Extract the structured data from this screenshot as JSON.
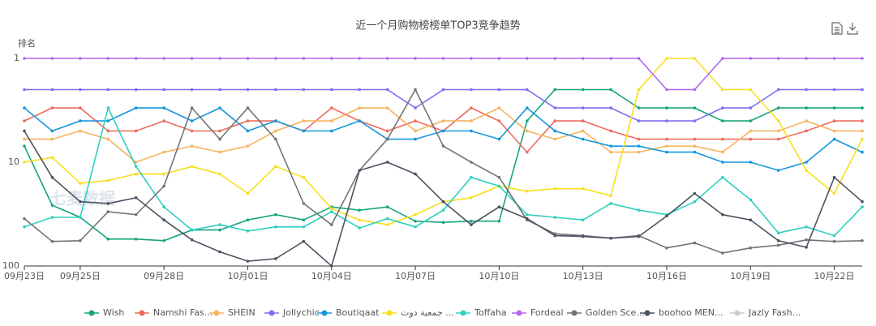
{
  "chart_data": {
    "type": "line",
    "title": "近一个月购物榜榜单TOP3竞争趋势",
    "y_label": "排名",
    "watermark": "七麦数据",
    "y_log": true,
    "y_inverted": true,
    "ylim": [
      1,
      100
    ],
    "yticks": [
      1,
      10,
      100
    ],
    "legend": "bottom",
    "categories": [
      "09月23日",
      null,
      "09月25日",
      null,
      null,
      "09月28日",
      null,
      null,
      "10月01日",
      null,
      null,
      "10月04日",
      null,
      null,
      "10月07日",
      null,
      null,
      "10月10日",
      null,
      null,
      "10月13日",
      null,
      null,
      "10月16日",
      null,
      null,
      "10月19日",
      null,
      null,
      "10月22日",
      null
    ],
    "series": [
      {
        "name": "Wish",
        "color": "#16a57e",
        "values": [
          7,
          26,
          34,
          55,
          55,
          57,
          45,
          45,
          36,
          32,
          36,
          27,
          29,
          27,
          37,
          38,
          37,
          37,
          4,
          2,
          2,
          2,
          3,
          3,
          3,
          4,
          4,
          3,
          3,
          3,
          3
        ]
      },
      {
        "name": "Namshi Fas...",
        "color": "#ee6b5e",
        "values": [
          4,
          3,
          3,
          5,
          5,
          4,
          5,
          5,
          4,
          4,
          5,
          3,
          4,
          5,
          4,
          5,
          3,
          4,
          8,
          4,
          4,
          5,
          6,
          6,
          6,
          6,
          6,
          6,
          5,
          4,
          4
        ]
      },
      {
        "name": "SHEIN",
        "color": "#f6b35f",
        "values": [
          6,
          6,
          5,
          6,
          10,
          8,
          7,
          8,
          7,
          5,
          4,
          4,
          3,
          3,
          5,
          4,
          4,
          3,
          5,
          6,
          5,
          8,
          8,
          7,
          7,
          8,
          5,
          5,
          4,
          5,
          5
        ]
      },
      {
        "name": "Jollychic",
        "color": "#7d6ef0",
        "values": [
          2,
          2,
          2,
          2,
          2,
          2,
          2,
          2,
          2,
          2,
          2,
          2,
          2,
          2,
          3,
          2,
          2,
          2,
          2,
          3,
          3,
          3,
          4,
          4,
          4,
          3,
          3,
          2,
          2,
          2,
          2
        ]
      },
      {
        "name": "Boutiqaat",
        "color": "#1596dc",
        "values": [
          3,
          5,
          4,
          4,
          3,
          3,
          4,
          3,
          5,
          4,
          5,
          5,
          4,
          6,
          6,
          5,
          5,
          6,
          3,
          5,
          6,
          7,
          7,
          8,
          8,
          10,
          10,
          12,
          10,
          6,
          8
        ]
      },
      {
        "name": "جمعية دوت ...",
        "color": "#f8df1c",
        "values": [
          10,
          9,
          16,
          15,
          13,
          13,
          11,
          13,
          20,
          11,
          14,
          28,
          36,
          40,
          32,
          24,
          22,
          17,
          19,
          18,
          18,
          21,
          2,
          1,
          1,
          2,
          2,
          4,
          12,
          20,
          6
        ]
      },
      {
        "name": "Toffaha",
        "color": "#2fd0bf",
        "values": [
          42,
          34,
          34,
          3,
          11,
          27,
          45,
          40,
          46,
          42,
          42,
          30,
          43,
          35,
          42,
          29,
          14,
          17,
          32,
          34,
          36,
          25,
          29,
          32,
          24,
          14,
          23,
          48,
          42,
          51,
          27
        ]
      },
      {
        "name": "Fordeal",
        "color": "#b266ee",
        "values": [
          1,
          1,
          1,
          1,
          1,
          1,
          1,
          1,
          1,
          1,
          1,
          1,
          1,
          1,
          1,
          1,
          1,
          1,
          1,
          1,
          1,
          1,
          1,
          2,
          2,
          1,
          1,
          1,
          1,
          1,
          1
        ]
      },
      {
        "name": "Golden Sce...",
        "color": "#717377",
        "values": [
          35,
          58,
          57,
          30,
          32,
          17,
          3,
          6,
          3,
          6,
          25,
          40,
          12,
          6,
          2,
          7,
          10,
          14,
          36,
          49,
          51,
          54,
          51,
          67,
          60,
          75,
          67,
          63,
          56,
          58,
          57
        ]
      },
      {
        "name": "boohoo MEN...",
        "color": "#4b5361",
        "values": [
          5,
          14,
          24,
          25,
          22,
          36,
          56,
          73,
          90,
          85,
          58,
          100,
          12,
          10,
          13,
          24,
          40,
          27,
          35,
          51,
          52,
          54,
          52,
          33,
          20,
          32,
          36,
          57,
          66,
          14,
          24
        ]
      },
      {
        "name": "Jazly Fash...",
        "color": "#cccccc",
        "hidden": true,
        "values": [
          null,
          null,
          null,
          null,
          null,
          null,
          null,
          null,
          null,
          null,
          null,
          null,
          null,
          null,
          null,
          null,
          null,
          null,
          null,
          null,
          null,
          null,
          null,
          null,
          null,
          null,
          null,
          null,
          null,
          null,
          null
        ]
      }
    ]
  }
}
